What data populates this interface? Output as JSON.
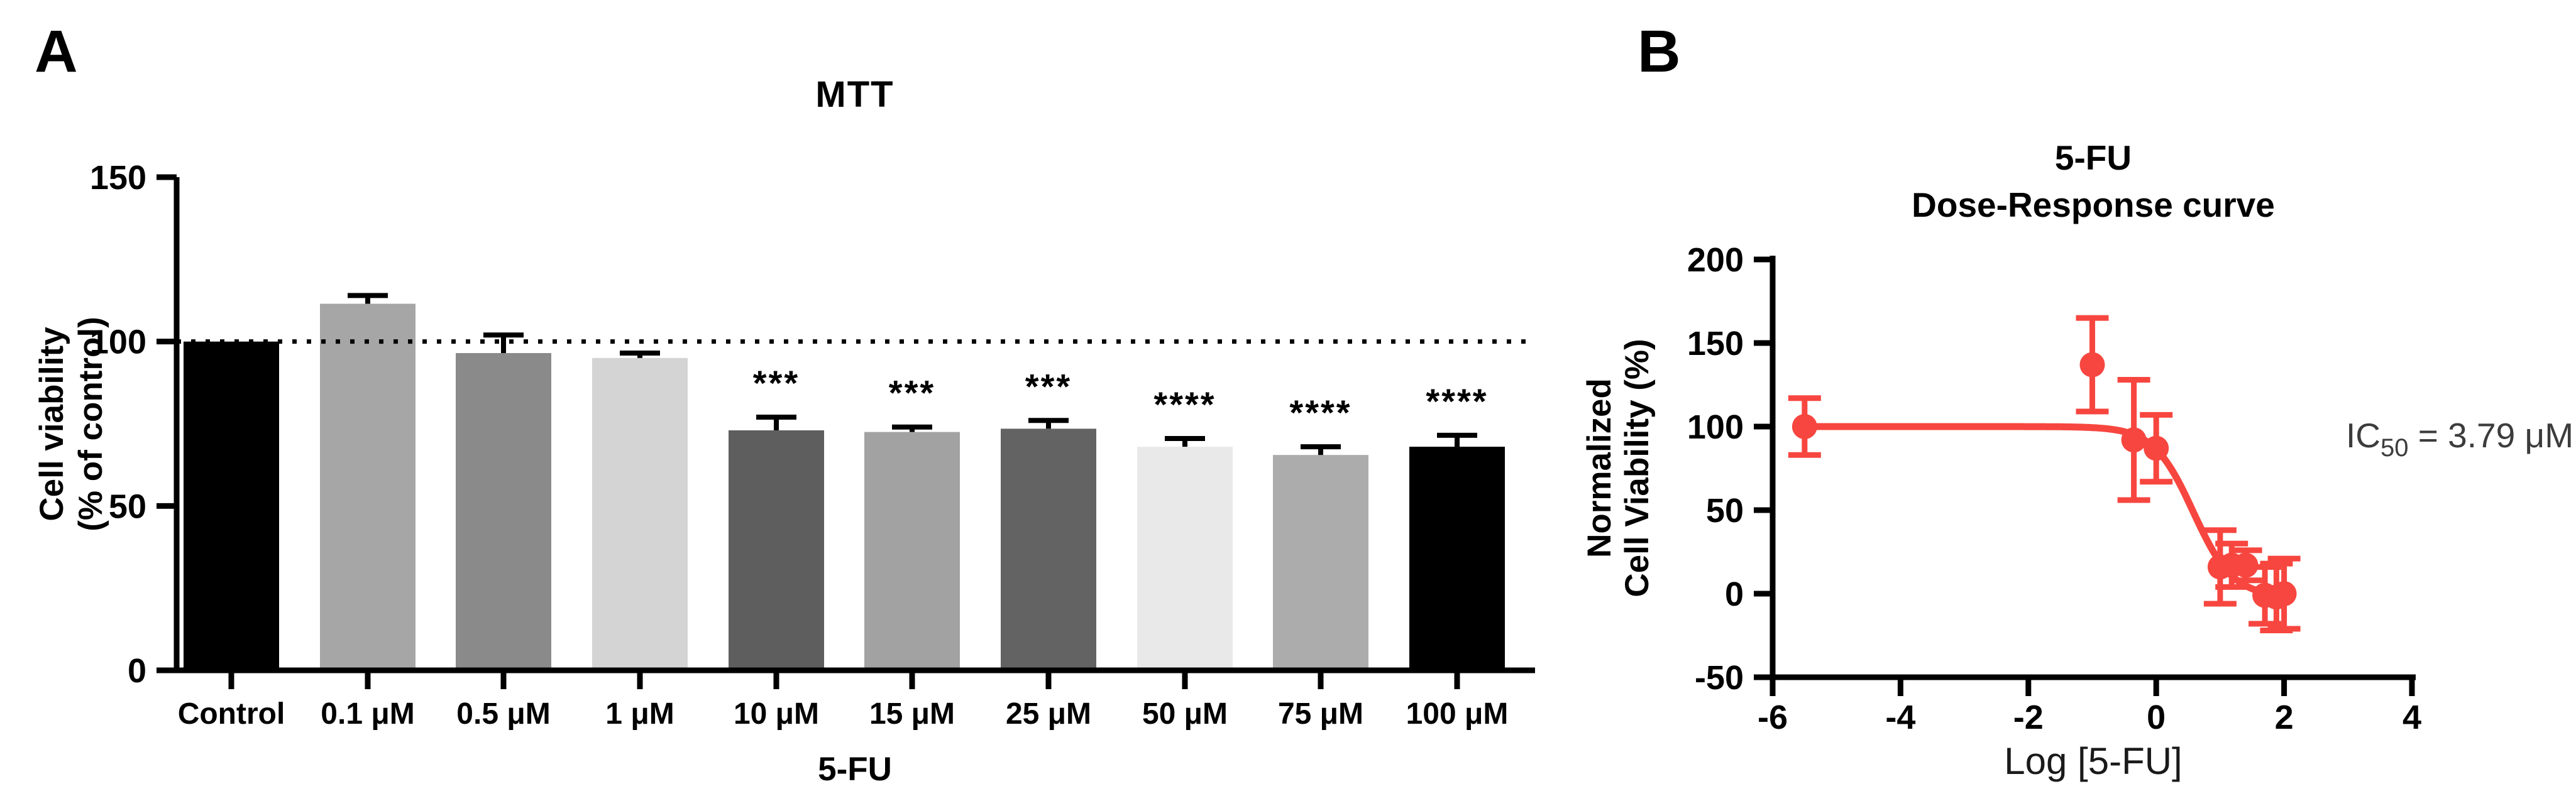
{
  "figure": {
    "panel_a_label": "A",
    "panel_b_label": "B",
    "background": "#ffffff"
  },
  "chart_data": [
    {
      "type": "bar",
      "panel": "A",
      "title": "MTT",
      "xlabel": "5-FU",
      "ylabel_lines": [
        "Cell viability",
        "(% of control)"
      ],
      "ylim": [
        0,
        150
      ],
      "yticks": [
        0,
        50,
        100,
        150
      ],
      "reference_line": 100,
      "grid": false,
      "categories": [
        "Control",
        "0.1 μM",
        "0.5 μM",
        "1 μM",
        "10 μM",
        "15 μM",
        "25 μM",
        "50 μM",
        "75 μM",
        "100 μM"
      ],
      "values": [
        100,
        111.5,
        96.5,
        95,
        73,
        72.5,
        73.5,
        68,
        65.5,
        68
      ],
      "errors": [
        null,
        2.5,
        5.5,
        1.5,
        4,
        1.5,
        2.5,
        2.5,
        2.5,
        3.5
      ],
      "significance": [
        "",
        "",
        "",
        "",
        "***",
        "***",
        "***",
        "****",
        "****",
        "****"
      ],
      "bar_colors": [
        "#000000",
        "#a6a6a6",
        "#8a8a8a",
        "#d4d4d4",
        "#5e5e5e",
        "#a2a2a2",
        "#636363",
        "#e9e9e9",
        "#acacac",
        "#000000"
      ]
    },
    {
      "type": "scatter",
      "panel": "B",
      "title_lines": [
        "5-FU",
        "Dose-Response curve"
      ],
      "xlabel": "Log [5-FU]",
      "ylabel_lines": [
        "Normalized",
        "Cell Viability (%)"
      ],
      "xlim": [
        -6,
        4
      ],
      "ylim": [
        -50,
        200
      ],
      "xticks": [
        -6,
        -4,
        -2,
        0,
        2,
        4
      ],
      "yticks": [
        -50,
        0,
        50,
        100,
        150,
        200
      ],
      "grid": false,
      "legend": "none",
      "color": "#f7463f",
      "points": [
        {
          "x": -5.5,
          "y": 100,
          "err": 17
        },
        {
          "x": -1,
          "y": 137,
          "err": 28
        },
        {
          "x": -0.35,
          "y": 92,
          "err": 36
        },
        {
          "x": 0,
          "y": 87,
          "err": 20
        },
        {
          "x": 1,
          "y": 16,
          "err": 22
        },
        {
          "x": 1.18,
          "y": 17,
          "err": 13
        },
        {
          "x": 1.4,
          "y": 17,
          "err": 9
        },
        {
          "x": 1.7,
          "y": -1,
          "err": 17
        },
        {
          "x": 1.88,
          "y": -2,
          "err": 20
        },
        {
          "x": 2,
          "y": 0,
          "err": 21
        }
      ],
      "curve": {
        "top": 100,
        "bottom": -2,
        "logIC50": 0.579,
        "hill": 1.4,
        "x_start": -5.5,
        "x_end": 2.0
      },
      "annotation": {
        "prefix": "IC",
        "sub": "50",
        "suffix": " = 3.79 μM"
      }
    }
  ]
}
